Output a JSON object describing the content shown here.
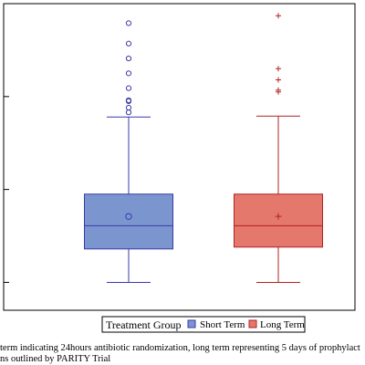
{
  "chart_data": {
    "type": "box",
    "title": "",
    "xlabel": "",
    "ylabel": "",
    "ylim": [
      0,
      3.3
    ],
    "y_ticks": [
      0.3,
      1.3,
      2.3,
      3.3
    ],
    "grid": false,
    "legend_placement": "bottom-center",
    "legend_title": "Treatment Group",
    "series": [
      {
        "name": "Short Term",
        "fill": "#7b96cf",
        "stroke": "#3a3aa8",
        "mean_marker": "circle",
        "outlier_marker": "circle",
        "whisker_low": 0.3,
        "q1": 0.66,
        "median": 0.91,
        "q3": 1.25,
        "whisker_high": 2.08,
        "mean": 1.01,
        "outliers": [
          2.13,
          2.18,
          2.25,
          2.26,
          2.39,
          2.55,
          2.71,
          2.87,
          3.09
        ]
      },
      {
        "name": "Long Term",
        "fill": "#e4786c",
        "stroke": "#b22222",
        "mean_marker": "plus",
        "outlier_marker": "plus",
        "whisker_low": 0.3,
        "q1": 0.68,
        "median": 0.91,
        "q3": 1.25,
        "whisker_high": 2.09,
        "mean": 1.01,
        "outliers": [
          2.35,
          2.37,
          2.48,
          2.6,
          3.17
        ]
      }
    ]
  },
  "caption": {
    "line1": "term indicating 24hours antibiotic randomization, long term representing 5 days of prophylact",
    "line2": "ns outlined by PARITY Trial"
  },
  "colors": {
    "axis": "#000000",
    "short_term": "#7b96cf",
    "long_term": "#e4786c"
  }
}
